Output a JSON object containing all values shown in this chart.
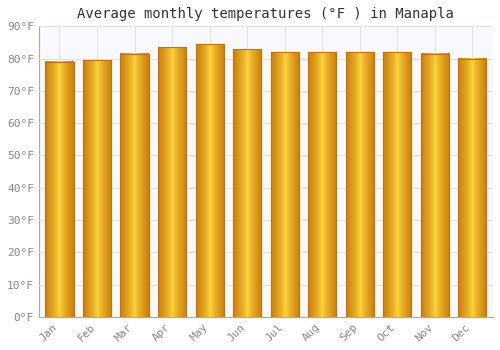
{
  "title": "Average monthly temperatures (°F ) in Manapla",
  "months": [
    "Jan",
    "Feb",
    "Mar",
    "Apr",
    "May",
    "Jun",
    "Jul",
    "Aug",
    "Sep",
    "Oct",
    "Nov",
    "Dec"
  ],
  "values": [
    79,
    79.5,
    81.5,
    83.5,
    84.5,
    83,
    82,
    82,
    82,
    82,
    81.5,
    80
  ],
  "bar_color_light": "#FFD060",
  "bar_color_main": "#FFA800",
  "bar_color_dark": "#CC7000",
  "ylim": [
    0,
    90
  ],
  "ytick_step": 10,
  "background_color": "#FFFFFF",
  "plot_bg_color": "#F8F8FF",
  "grid_color": "#DDDDDD",
  "title_fontsize": 10,
  "tick_fontsize": 8,
  "tick_label_color": "#888888",
  "title_color": "#333333",
  "bar_width": 0.75
}
